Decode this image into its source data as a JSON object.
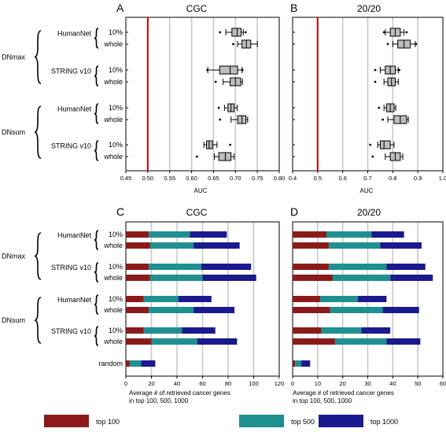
{
  "figure": {
    "row_labels": {
      "group_top": "DNmax",
      "group_bottom": "DNsum",
      "network_a": "HumanNet",
      "network_b": "STRING v10",
      "sub_a": "10%",
      "sub_b": "whole",
      "random": "random"
    },
    "legend": {
      "items": [
        {
          "label": "top 100",
          "color": "#8b1a1a"
        },
        {
          "label": "top 500",
          "color": "#1f8f8f"
        },
        {
          "label": "top 1000",
          "color": "#1a1a8f"
        }
      ]
    },
    "colors": {
      "red_line": "#cc0000",
      "box_fill": "#bdbdbd",
      "grid": "#c8c8c8"
    }
  },
  "chart_data": [
    {
      "panel": "A",
      "title": "CGC",
      "type": "box",
      "xlabel": "AUC",
      "xlim": [
        0.45,
        0.8
      ],
      "xticks": [
        "0.45",
        "0.50",
        "0.55",
        "0.60",
        "0.65",
        "0.70",
        "0.75",
        "0.80"
      ],
      "reference_line": 0.5,
      "boxes": [
        {
          "row": "DNmax HumanNet 10%",
          "min": 0.678,
          "q1": 0.692,
          "median": 0.704,
          "q3": 0.713,
          "max": 0.718,
          "outliers": [
            0.665,
            0.723
          ]
        },
        {
          "row": "DNmax HumanNet whole",
          "min": 0.705,
          "q1": 0.715,
          "median": 0.725,
          "q3": 0.735,
          "max": 0.75,
          "outliers": [
            0.695
          ]
        },
        {
          "row": "DNmax STRING v10 10%",
          "min": 0.637,
          "q1": 0.664,
          "median": 0.688,
          "q3": 0.705,
          "max": 0.715,
          "outliers": [
            0.636,
            0.716
          ]
        },
        {
          "row": "DNmax STRING v10 whole",
          "min": 0.672,
          "q1": 0.688,
          "median": 0.7,
          "q3": 0.712,
          "max": 0.716,
          "outliers": [
            0.655
          ]
        },
        {
          "row": "DNsum HumanNet 10%",
          "min": 0.675,
          "q1": 0.683,
          "median": 0.69,
          "q3": 0.697,
          "max": 0.704,
          "outliers": [
            0.662
          ]
        },
        {
          "row": "DNsum HumanNet whole",
          "min": 0.69,
          "q1": 0.705,
          "median": 0.715,
          "q3": 0.724,
          "max": 0.728,
          "outliers": [
            0.665
          ]
        },
        {
          "row": "DNsum STRING v10 10%",
          "min": 0.628,
          "q1": 0.634,
          "median": 0.64,
          "q3": 0.648,
          "max": 0.658,
          "outliers": [
            0.688
          ]
        },
        {
          "row": "DNsum STRING v10 whole",
          "min": 0.652,
          "q1": 0.662,
          "median": 0.677,
          "q3": 0.69,
          "max": 0.697,
          "outliers": [
            0.612
          ]
        }
      ]
    },
    {
      "panel": "B",
      "title": "20/20",
      "type": "box",
      "xlabel": "AUC",
      "xlim": [
        0.4,
        1.0
      ],
      "xticks": [
        "0.4",
        "0.5",
        "0.6",
        "0.7",
        "0.8",
        "0.9",
        "1.0"
      ],
      "reference_line": 0.5,
      "boxes": [
        {
          "row": "DNmax HumanNet 10%",
          "min": 0.77,
          "q1": 0.79,
          "median": 0.81,
          "q3": 0.83,
          "max": 0.845,
          "outliers": [
            0.765,
            0.855
          ]
        },
        {
          "row": "DNmax HumanNet whole",
          "min": 0.8,
          "q1": 0.82,
          "median": 0.845,
          "q3": 0.87,
          "max": 0.89,
          "outliers": [
            0.78,
            0.893
          ]
        },
        {
          "row": "DNmax STRING v10 10%",
          "min": 0.75,
          "q1": 0.77,
          "median": 0.79,
          "q3": 0.81,
          "max": 0.822,
          "outliers": [
            0.73,
            0.826
          ]
        },
        {
          "row": "DNmax STRING v10 whole",
          "min": 0.765,
          "q1": 0.78,
          "median": 0.795,
          "q3": 0.81,
          "max": 0.822,
          "outliers": [
            0.73
          ]
        },
        {
          "row": "DNsum HumanNet 10%",
          "min": 0.765,
          "q1": 0.775,
          "median": 0.79,
          "q3": 0.805,
          "max": 0.812,
          "outliers": [
            0.745
          ]
        },
        {
          "row": "DNsum HumanNet whole",
          "min": 0.78,
          "q1": 0.805,
          "median": 0.83,
          "q3": 0.855,
          "max": 0.862,
          "outliers": [
            0.76
          ]
        },
        {
          "row": "DNsum STRING v10 10%",
          "min": 0.74,
          "q1": 0.75,
          "median": 0.765,
          "q3": 0.79,
          "max": 0.805,
          "outliers": [
            0.71
          ]
        },
        {
          "row": "DNsum STRING v10 whole",
          "min": 0.77,
          "q1": 0.79,
          "median": 0.81,
          "q3": 0.83,
          "max": 0.84,
          "outliers": [
            0.72
          ]
        }
      ]
    },
    {
      "panel": "C",
      "title": "CGC",
      "type": "bar",
      "xlabel": "Average # of retrieved cancer genes\nin top 100,  500, 1000",
      "xlim": [
        0,
        120
      ],
      "xticks": [
        "0",
        "20",
        "40",
        "60",
        "80",
        "100",
        "120"
      ],
      "series_order": [
        "top 100",
        "top 500",
        "top 1000"
      ],
      "bars": [
        {
          "row": "DNmax HumanNet 10%",
          "values": [
            18,
            50,
            79
          ]
        },
        {
          "row": "DNmax HumanNet whole",
          "values": [
            19,
            53,
            89
          ]
        },
        {
          "row": "DNmax STRING v10 10%",
          "values": [
            18,
            59,
            98
          ]
        },
        {
          "row": "DNmax STRING v10 whole",
          "values": [
            19,
            60,
            102
          ]
        },
        {
          "row": "DNsum HumanNet 10%",
          "values": [
            14,
            41,
            67
          ]
        },
        {
          "row": "DNsum HumanNet whole",
          "values": [
            18,
            53,
            85
          ]
        },
        {
          "row": "DNsum STRING v10 10%",
          "values": [
            14,
            44,
            70
          ]
        },
        {
          "row": "DNsum STRING v10 whole",
          "values": [
            20,
            56,
            87
          ]
        },
        {
          "row": "random",
          "values": [
            3,
            12,
            23
          ]
        }
      ]
    },
    {
      "panel": "D",
      "title": "20/20",
      "type": "bar",
      "xlabel": "Average # of retrieved cancer genes\nin top 100,  500, 1000",
      "xlim": [
        0,
        60
      ],
      "xticks": [
        "0",
        "10",
        "20",
        "30",
        "40",
        "50",
        "60"
      ],
      "series_order": [
        "top 100",
        "top 500",
        "top 1000"
      ],
      "bars": [
        {
          "row": "DNmax HumanNet 10%",
          "values": [
            13.5,
            31.5,
            44.5
          ]
        },
        {
          "row": "DNmax HumanNet whole",
          "values": [
            14.5,
            35,
            51.5
          ]
        },
        {
          "row": "DNmax STRING v10 10%",
          "values": [
            14.5,
            37.5,
            53
          ]
        },
        {
          "row": "DNmax STRING v10 whole",
          "values": [
            16,
            39,
            56
          ]
        },
        {
          "row": "DNsum HumanNet 10%",
          "values": [
            11,
            26,
            37.5
          ]
        },
        {
          "row": "DNsum HumanNet whole",
          "values": [
            15,
            36,
            50.5
          ]
        },
        {
          "row": "DNsum STRING v10 10%",
          "values": [
            11.5,
            27.5,
            39
          ]
        },
        {
          "row": "DNsum STRING v10 whole",
          "values": [
            17,
            37.5,
            51
          ]
        },
        {
          "row": "random",
          "values": [
            1,
            3.5,
            7
          ]
        }
      ]
    }
  ]
}
